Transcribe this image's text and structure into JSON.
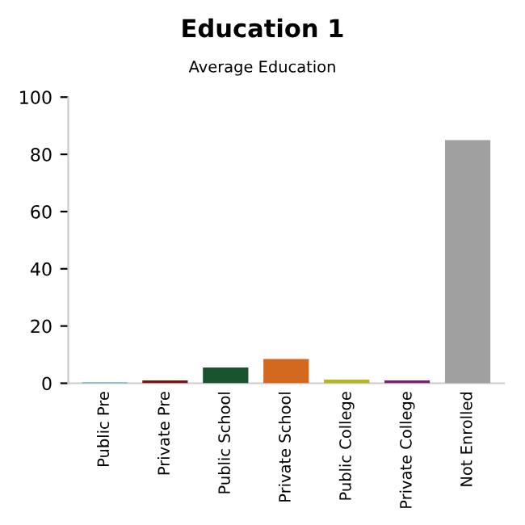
{
  "chart_data": {
    "type": "bar",
    "title": "Education 1",
    "subtitle": "Average Education",
    "categories": [
      "Public Pre",
      "Private Pre",
      "Public School",
      "Private School",
      "Public College",
      "Private College",
      "Not Enrolled"
    ],
    "values": [
      0.3,
      1,
      5.5,
      8.5,
      1.3,
      1,
      85
    ],
    "colors": [
      "#1fa8c4",
      "#7a1414",
      "#17542f",
      "#d2691e",
      "#b8b41e",
      "#7f1f6e",
      "#a0a0a0"
    ],
    "ylim": [
      0,
      100
    ],
    "yticks": [
      0,
      20,
      40,
      60,
      80,
      100
    ],
    "grid": false
  }
}
